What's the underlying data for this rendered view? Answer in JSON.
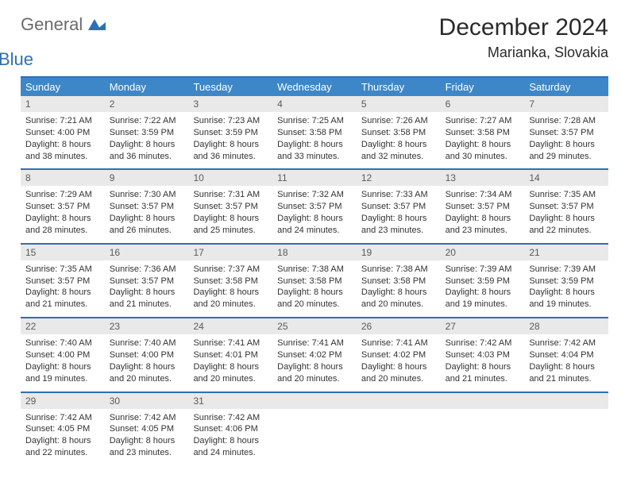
{
  "brand": {
    "general": "General",
    "blue": "Blue"
  },
  "title": "December 2024",
  "location": "Marianka, Slovakia",
  "colors": {
    "accent": "#3d87c9",
    "rule": "#2f6fb3",
    "shade": "#e9e9e9"
  },
  "dow": [
    "Sunday",
    "Monday",
    "Tuesday",
    "Wednesday",
    "Thursday",
    "Friday",
    "Saturday"
  ],
  "weeks": [
    [
      {
        "n": "1",
        "sr": "Sunrise: 7:21 AM",
        "ss": "Sunset: 4:00 PM",
        "dl1": "Daylight: 8 hours",
        "dl2": "and 38 minutes."
      },
      {
        "n": "2",
        "sr": "Sunrise: 7:22 AM",
        "ss": "Sunset: 3:59 PM",
        "dl1": "Daylight: 8 hours",
        "dl2": "and 36 minutes."
      },
      {
        "n": "3",
        "sr": "Sunrise: 7:23 AM",
        "ss": "Sunset: 3:59 PM",
        "dl1": "Daylight: 8 hours",
        "dl2": "and 36 minutes."
      },
      {
        "n": "4",
        "sr": "Sunrise: 7:25 AM",
        "ss": "Sunset: 3:58 PM",
        "dl1": "Daylight: 8 hours",
        "dl2": "and 33 minutes."
      },
      {
        "n": "5",
        "sr": "Sunrise: 7:26 AM",
        "ss": "Sunset: 3:58 PM",
        "dl1": "Daylight: 8 hours",
        "dl2": "and 32 minutes."
      },
      {
        "n": "6",
        "sr": "Sunrise: 7:27 AM",
        "ss": "Sunset: 3:58 PM",
        "dl1": "Daylight: 8 hours",
        "dl2": "and 30 minutes."
      },
      {
        "n": "7",
        "sr": "Sunrise: 7:28 AM",
        "ss": "Sunset: 3:57 PM",
        "dl1": "Daylight: 8 hours",
        "dl2": "and 29 minutes."
      }
    ],
    [
      {
        "n": "8",
        "sr": "Sunrise: 7:29 AM",
        "ss": "Sunset: 3:57 PM",
        "dl1": "Daylight: 8 hours",
        "dl2": "and 28 minutes."
      },
      {
        "n": "9",
        "sr": "Sunrise: 7:30 AM",
        "ss": "Sunset: 3:57 PM",
        "dl1": "Daylight: 8 hours",
        "dl2": "and 26 minutes."
      },
      {
        "n": "10",
        "sr": "Sunrise: 7:31 AM",
        "ss": "Sunset: 3:57 PM",
        "dl1": "Daylight: 8 hours",
        "dl2": "and 25 minutes."
      },
      {
        "n": "11",
        "sr": "Sunrise: 7:32 AM",
        "ss": "Sunset: 3:57 PM",
        "dl1": "Daylight: 8 hours",
        "dl2": "and 24 minutes."
      },
      {
        "n": "12",
        "sr": "Sunrise: 7:33 AM",
        "ss": "Sunset: 3:57 PM",
        "dl1": "Daylight: 8 hours",
        "dl2": "and 23 minutes."
      },
      {
        "n": "13",
        "sr": "Sunrise: 7:34 AM",
        "ss": "Sunset: 3:57 PM",
        "dl1": "Daylight: 8 hours",
        "dl2": "and 23 minutes."
      },
      {
        "n": "14",
        "sr": "Sunrise: 7:35 AM",
        "ss": "Sunset: 3:57 PM",
        "dl1": "Daylight: 8 hours",
        "dl2": "and 22 minutes."
      }
    ],
    [
      {
        "n": "15",
        "sr": "Sunrise: 7:35 AM",
        "ss": "Sunset: 3:57 PM",
        "dl1": "Daylight: 8 hours",
        "dl2": "and 21 minutes."
      },
      {
        "n": "16",
        "sr": "Sunrise: 7:36 AM",
        "ss": "Sunset: 3:57 PM",
        "dl1": "Daylight: 8 hours",
        "dl2": "and 21 minutes."
      },
      {
        "n": "17",
        "sr": "Sunrise: 7:37 AM",
        "ss": "Sunset: 3:58 PM",
        "dl1": "Daylight: 8 hours",
        "dl2": "and 20 minutes."
      },
      {
        "n": "18",
        "sr": "Sunrise: 7:38 AM",
        "ss": "Sunset: 3:58 PM",
        "dl1": "Daylight: 8 hours",
        "dl2": "and 20 minutes."
      },
      {
        "n": "19",
        "sr": "Sunrise: 7:38 AM",
        "ss": "Sunset: 3:58 PM",
        "dl1": "Daylight: 8 hours",
        "dl2": "and 20 minutes."
      },
      {
        "n": "20",
        "sr": "Sunrise: 7:39 AM",
        "ss": "Sunset: 3:59 PM",
        "dl1": "Daylight: 8 hours",
        "dl2": "and 19 minutes."
      },
      {
        "n": "21",
        "sr": "Sunrise: 7:39 AM",
        "ss": "Sunset: 3:59 PM",
        "dl1": "Daylight: 8 hours",
        "dl2": "and 19 minutes."
      }
    ],
    [
      {
        "n": "22",
        "sr": "Sunrise: 7:40 AM",
        "ss": "Sunset: 4:00 PM",
        "dl1": "Daylight: 8 hours",
        "dl2": "and 19 minutes."
      },
      {
        "n": "23",
        "sr": "Sunrise: 7:40 AM",
        "ss": "Sunset: 4:00 PM",
        "dl1": "Daylight: 8 hours",
        "dl2": "and 20 minutes."
      },
      {
        "n": "24",
        "sr": "Sunrise: 7:41 AM",
        "ss": "Sunset: 4:01 PM",
        "dl1": "Daylight: 8 hours",
        "dl2": "and 20 minutes."
      },
      {
        "n": "25",
        "sr": "Sunrise: 7:41 AM",
        "ss": "Sunset: 4:02 PM",
        "dl1": "Daylight: 8 hours",
        "dl2": "and 20 minutes."
      },
      {
        "n": "26",
        "sr": "Sunrise: 7:41 AM",
        "ss": "Sunset: 4:02 PM",
        "dl1": "Daylight: 8 hours",
        "dl2": "and 20 minutes."
      },
      {
        "n": "27",
        "sr": "Sunrise: 7:42 AM",
        "ss": "Sunset: 4:03 PM",
        "dl1": "Daylight: 8 hours",
        "dl2": "and 21 minutes."
      },
      {
        "n": "28",
        "sr": "Sunrise: 7:42 AM",
        "ss": "Sunset: 4:04 PM",
        "dl1": "Daylight: 8 hours",
        "dl2": "and 21 minutes."
      }
    ],
    [
      {
        "n": "29",
        "sr": "Sunrise: 7:42 AM",
        "ss": "Sunset: 4:05 PM",
        "dl1": "Daylight: 8 hours",
        "dl2": "and 22 minutes."
      },
      {
        "n": "30",
        "sr": "Sunrise: 7:42 AM",
        "ss": "Sunset: 4:05 PM",
        "dl1": "Daylight: 8 hours",
        "dl2": "and 23 minutes."
      },
      {
        "n": "31",
        "sr": "Sunrise: 7:42 AM",
        "ss": "Sunset: 4:06 PM",
        "dl1": "Daylight: 8 hours",
        "dl2": "and 24 minutes."
      },
      {
        "empty": true
      },
      {
        "empty": true
      },
      {
        "empty": true
      },
      {
        "empty": true
      }
    ]
  ]
}
